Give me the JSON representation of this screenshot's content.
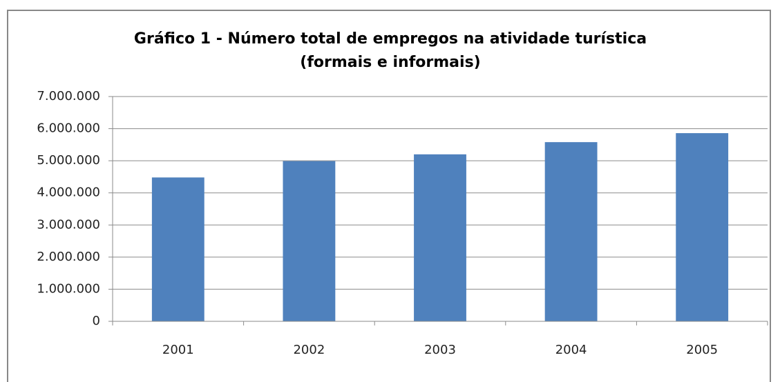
{
  "chart_data": {
    "type": "bar",
    "title": "Gráfico 1 - Número total de empregos na atividade turística (formais e informais)",
    "categories": [
      "2001",
      "2002",
      "2003",
      "2004",
      "2005"
    ],
    "values": [
      4480000,
      4990000,
      5200000,
      5580000,
      5860000
    ],
    "color": "#4f81bd",
    "ylim": [
      0,
      7000000
    ],
    "yticks": [
      0,
      {
        "value": 1000000,
        "label": "1.000.000"
      },
      {
        "value": 2000000,
        "label": "2.000.000"
      },
      {
        "value": 3000000,
        "label": "3.000.000"
      },
      {
        "value": 4000000,
        "label": "4.000.000"
      },
      {
        "value": 5000000,
        "label": "5.000.000"
      },
      {
        "value": 6000000,
        "label": "6.000.000"
      },
      {
        "value": 7000000,
        "label": "7.000.000"
      }
    ],
    "grid": true
  }
}
